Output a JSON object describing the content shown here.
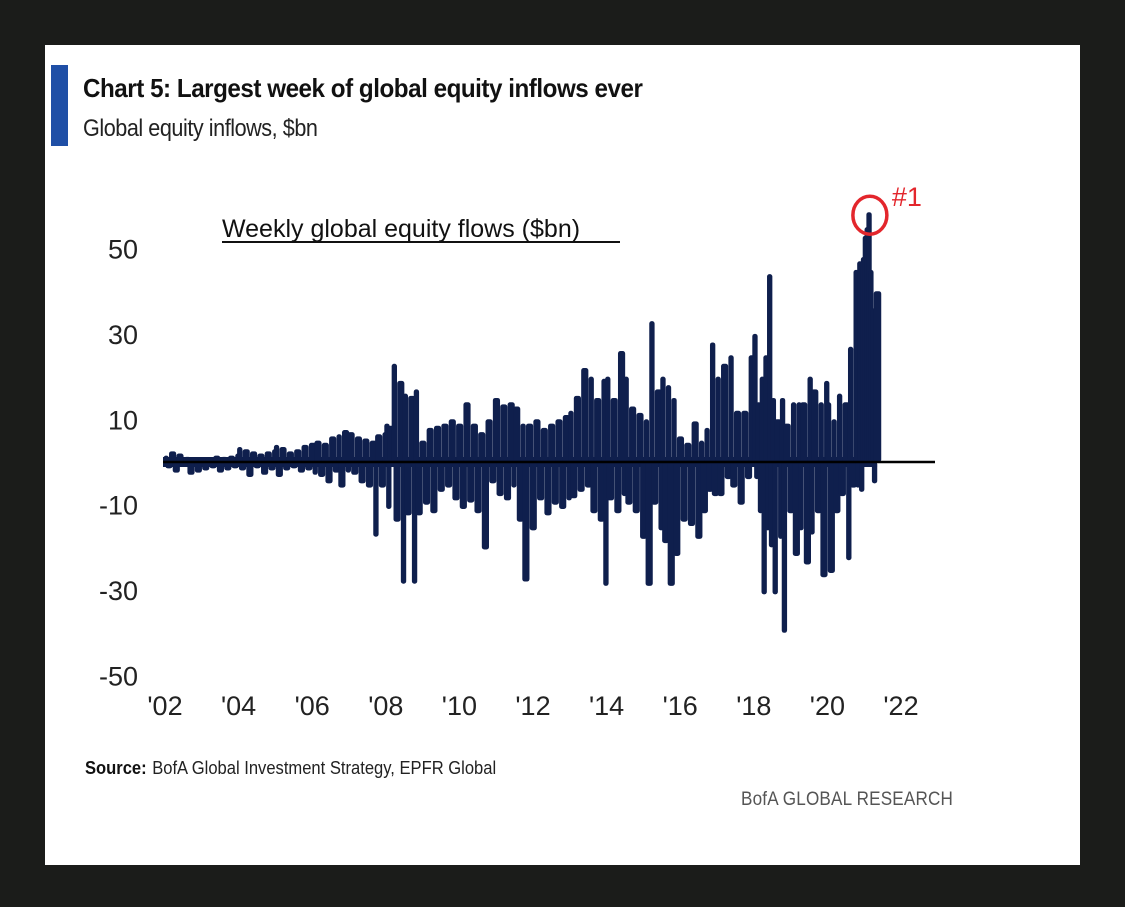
{
  "header": {
    "title": "Chart 5: Largest week of global equity inflows ever",
    "subtitle": "Global equity inflows, $bn",
    "accent_color": "#1f4fa6"
  },
  "footer": {
    "source_label": "Source:",
    "source_text": "BofA Global Investment Strategy, EPFR Global",
    "brand": "BofA GLOBAL RESEARCH"
  },
  "chart_data": {
    "type": "bar",
    "title": "Weekly global equity flows ($bn)",
    "xlabel": "",
    "ylabel": "",
    "ylim": [
      -50,
      60
    ],
    "xlim": [
      2002,
      2023
    ],
    "grid": false,
    "bar_color": "#0f1f4d",
    "zero_line_color": "#000000",
    "yticks": [
      50,
      30,
      10,
      -10,
      -30,
      -50
    ],
    "ytick_labels": [
      "50",
      "30",
      "10",
      "-10",
      "-30",
      "-50"
    ],
    "xticks": [
      2002,
      2004,
      2006,
      2008,
      2010,
      2012,
      2014,
      2016,
      2018,
      2020,
      2022
    ],
    "xtick_labels": [
      "'02",
      "'04",
      "'06",
      "'08",
      "'10",
      "'12",
      "'14",
      "'16",
      "'18",
      "'20",
      "'22"
    ],
    "annotation": {
      "label": "#1",
      "x": 2021.1,
      "y": 58.5,
      "color": "#e3262c"
    },
    "series": [
      {
        "name": "Weekly global equity flows",
        "points": [
          [
            2002.0,
            1.5
          ],
          [
            2002.05,
            -1.5
          ],
          [
            2002.15,
            2.5
          ],
          [
            2002.25,
            -2.5
          ],
          [
            2002.35,
            2.0
          ],
          [
            2002.45,
            -1.0
          ],
          [
            2002.55,
            1.2
          ],
          [
            2002.65,
            -3.0
          ],
          [
            2002.75,
            1.0
          ],
          [
            2002.85,
            -2.5
          ],
          [
            2002.95,
            0.8
          ],
          [
            2003.05,
            -2.0
          ],
          [
            2003.15,
            1.0
          ],
          [
            2003.25,
            -1.5
          ],
          [
            2003.35,
            1.5
          ],
          [
            2003.45,
            -2.5
          ],
          [
            2003.55,
            1.2
          ],
          [
            2003.65,
            -2.0
          ],
          [
            2003.75,
            1.5
          ],
          [
            2003.85,
            -1.5
          ],
          [
            2003.95,
            2.0
          ],
          [
            2004.0,
            3.5
          ],
          [
            2004.05,
            -2.0
          ],
          [
            2004.15,
            3.0
          ],
          [
            2004.25,
            -3.5
          ],
          [
            2004.35,
            2.5
          ],
          [
            2004.45,
            -1.5
          ],
          [
            2004.55,
            2.0
          ],
          [
            2004.65,
            -3.0
          ],
          [
            2004.75,
            2.5
          ],
          [
            2004.85,
            -2.0
          ],
          [
            2004.95,
            3.0
          ],
          [
            2005.0,
            4.0
          ],
          [
            2005.05,
            -3.5
          ],
          [
            2005.15,
            3.5
          ],
          [
            2005.25,
            -2.0
          ],
          [
            2005.35,
            2.5
          ],
          [
            2005.45,
            -1.5
          ],
          [
            2005.55,
            3.0
          ],
          [
            2005.65,
            -2.5
          ],
          [
            2005.75,
            4.0
          ],
          [
            2005.85,
            -2.0
          ],
          [
            2005.95,
            4.5
          ],
          [
            2006.05,
            -3.0
          ],
          [
            2006.1,
            5.0
          ],
          [
            2006.2,
            -3.5
          ],
          [
            2006.3,
            4.5
          ],
          [
            2006.4,
            -5.0
          ],
          [
            2006.5,
            6.0
          ],
          [
            2006.6,
            -2.5
          ],
          [
            2006.7,
            6.5
          ],
          [
            2006.75,
            -6.0
          ],
          [
            2006.85,
            7.5
          ],
          [
            2006.95,
            -2.5
          ],
          [
            2007.0,
            7.0
          ],
          [
            2007.1,
            -3.0
          ],
          [
            2007.2,
            6.0
          ],
          [
            2007.3,
            -5.0
          ],
          [
            2007.4,
            5.5
          ],
          [
            2007.5,
            -6.0
          ],
          [
            2007.6,
            5.0
          ],
          [
            2007.7,
            -17.5
          ],
          [
            2007.75,
            6.5
          ],
          [
            2007.85,
            -6.0
          ],
          [
            2007.95,
            7.0
          ],
          [
            2008.0,
            9.0
          ],
          [
            2008.05,
            -11.0
          ],
          [
            2008.1,
            8.5
          ],
          [
            2008.2,
            23.0
          ],
          [
            2008.25,
            -14.0
          ],
          [
            2008.35,
            19.0
          ],
          [
            2008.45,
            -28.5
          ],
          [
            2008.5,
            16.0
          ],
          [
            2008.55,
            -12.5
          ],
          [
            2008.65,
            15.5
          ],
          [
            2008.75,
            -28.5
          ],
          [
            2008.8,
            17.0
          ],
          [
            2008.85,
            -12.5
          ],
          [
            2008.95,
            5.0
          ],
          [
            2009.05,
            -10.0
          ],
          [
            2009.15,
            8.0
          ],
          [
            2009.25,
            -12.0
          ],
          [
            2009.35,
            8.5
          ],
          [
            2009.45,
            -7.0
          ],
          [
            2009.55,
            9.0
          ],
          [
            2009.65,
            -6.0
          ],
          [
            2009.75,
            10.0
          ],
          [
            2009.85,
            -9.0
          ],
          [
            2009.95,
            9.0
          ],
          [
            2010.05,
            -11.0
          ],
          [
            2010.15,
            14.0
          ],
          [
            2010.25,
            -9.5
          ],
          [
            2010.35,
            9.0
          ],
          [
            2010.45,
            -12.0
          ],
          [
            2010.55,
            7.0
          ],
          [
            2010.65,
            -20.5
          ],
          [
            2010.75,
            10.0
          ],
          [
            2010.85,
            -5.0
          ],
          [
            2010.95,
            15.0
          ],
          [
            2011.05,
            -8.0
          ],
          [
            2011.15,
            13.5
          ],
          [
            2011.25,
            -9.0
          ],
          [
            2011.35,
            14.0
          ],
          [
            2011.45,
            -6.0
          ],
          [
            2011.5,
            13.0
          ],
          [
            2011.6,
            -14.0
          ],
          [
            2011.7,
            9.0
          ],
          [
            2011.75,
            -28.0
          ],
          [
            2011.85,
            9.0
          ],
          [
            2011.95,
            -16.0
          ],
          [
            2012.05,
            10.0
          ],
          [
            2012.15,
            -9.0
          ],
          [
            2012.25,
            8.0
          ],
          [
            2012.35,
            -12.5
          ],
          [
            2012.45,
            9.0
          ],
          [
            2012.55,
            -10.0
          ],
          [
            2012.65,
            10.0
          ],
          [
            2012.75,
            -11.0
          ],
          [
            2012.85,
            11.0
          ],
          [
            2012.95,
            -9.0
          ],
          [
            2013.0,
            12.0
          ],
          [
            2013.05,
            -8.5
          ],
          [
            2013.15,
            15.5
          ],
          [
            2013.25,
            -7.0
          ],
          [
            2013.35,
            22.0
          ],
          [
            2013.45,
            -6.0
          ],
          [
            2013.55,
            20.0
          ],
          [
            2013.6,
            -12.0
          ],
          [
            2013.7,
            15.0
          ],
          [
            2013.8,
            -14.0
          ],
          [
            2013.9,
            19.5
          ],
          [
            2013.95,
            -29.0
          ],
          [
            2014.0,
            20.0
          ],
          [
            2014.05,
            -9.0
          ],
          [
            2014.15,
            15.0
          ],
          [
            2014.25,
            -12.0
          ],
          [
            2014.35,
            26.0
          ],
          [
            2014.45,
            -8.0
          ],
          [
            2014.5,
            20.0
          ],
          [
            2014.55,
            -10.0
          ],
          [
            2014.65,
            13.0
          ],
          [
            2014.75,
            -12.0
          ],
          [
            2014.85,
            11.5
          ],
          [
            2014.95,
            -18.0
          ],
          [
            2015.05,
            10.0
          ],
          [
            2015.1,
            -29.0
          ],
          [
            2015.2,
            33.0
          ],
          [
            2015.25,
            -10.0
          ],
          [
            2015.35,
            17.0
          ],
          [
            2015.45,
            -16.0
          ],
          [
            2015.5,
            20.0
          ],
          [
            2015.55,
            -19.0
          ],
          [
            2015.65,
            18.0
          ],
          [
            2015.7,
            -29.0
          ],
          [
            2015.8,
            15.0
          ],
          [
            2015.85,
            -22.0
          ],
          [
            2015.95,
            6.0
          ],
          [
            2016.05,
            -14.0
          ],
          [
            2016.15,
            4.5
          ],
          [
            2016.25,
            -15.0
          ],
          [
            2016.35,
            9.5
          ],
          [
            2016.45,
            -18.0
          ],
          [
            2016.55,
            5.0
          ],
          [
            2016.6,
            -12.0
          ],
          [
            2016.7,
            8.0
          ],
          [
            2016.75,
            -7.0
          ],
          [
            2016.85,
            28.0
          ],
          [
            2016.9,
            -8.0
          ],
          [
            2017.0,
            20.0
          ],
          [
            2017.05,
            -8.0
          ],
          [
            2017.15,
            23.0
          ],
          [
            2017.25,
            -4.0
          ],
          [
            2017.35,
            25.0
          ],
          [
            2017.4,
            -6.0
          ],
          [
            2017.5,
            12.0
          ],
          [
            2017.6,
            -10.0
          ],
          [
            2017.7,
            12.0
          ],
          [
            2017.8,
            -4.0
          ],
          [
            2017.9,
            25.0
          ],
          [
            2018.0,
            30.0
          ],
          [
            2018.05,
            -4.0
          ],
          [
            2018.1,
            14.0
          ],
          [
            2018.15,
            -12.0
          ],
          [
            2018.2,
            20.0
          ],
          [
            2018.25,
            -31.0
          ],
          [
            2018.3,
            25.0
          ],
          [
            2018.35,
            -16.0
          ],
          [
            2018.4,
            44.0
          ],
          [
            2018.45,
            -20.0
          ],
          [
            2018.5,
            15.0
          ],
          [
            2018.55,
            -31.0
          ],
          [
            2018.6,
            10.0
          ],
          [
            2018.7,
            -18.0
          ],
          [
            2018.75,
            15.0
          ],
          [
            2018.8,
            -40.0
          ],
          [
            2018.85,
            9.0
          ],
          [
            2018.95,
            -12.0
          ],
          [
            2019.05,
            14.0
          ],
          [
            2019.1,
            -22.0
          ],
          [
            2019.2,
            14.0
          ],
          [
            2019.25,
            -16.0
          ],
          [
            2019.3,
            14.0
          ],
          [
            2019.4,
            -24.0
          ],
          [
            2019.5,
            20.0
          ],
          [
            2019.55,
            -17.0
          ],
          [
            2019.6,
            17.0
          ],
          [
            2019.7,
            -12.0
          ],
          [
            2019.8,
            14.0
          ],
          [
            2019.85,
            -27.0
          ],
          [
            2019.95,
            19.0
          ],
          [
            2020.0,
            14.0
          ],
          [
            2020.05,
            -26.0
          ],
          [
            2020.15,
            10.0
          ],
          [
            2020.2,
            -12.0
          ],
          [
            2020.3,
            16.0
          ],
          [
            2020.35,
            -8.0
          ],
          [
            2020.45,
            14.0
          ],
          [
            2020.55,
            -23.0
          ],
          [
            2020.6,
            27.0
          ],
          [
            2020.65,
            -6.0
          ],
          [
            2020.75,
            45.0
          ],
          [
            2020.8,
            -6.0
          ],
          [
            2020.85,
            47.0
          ],
          [
            2020.9,
            -7.0
          ],
          [
            2020.95,
            48.0
          ],
          [
            2021.0,
            53.0
          ],
          [
            2021.05,
            55.0
          ],
          [
            2021.1,
            58.5
          ],
          [
            2021.15,
            45.0
          ],
          [
            2021.2,
            36.0
          ],
          [
            2021.25,
            -5.0
          ],
          [
            2021.3,
            40.0
          ]
        ]
      }
    ]
  }
}
